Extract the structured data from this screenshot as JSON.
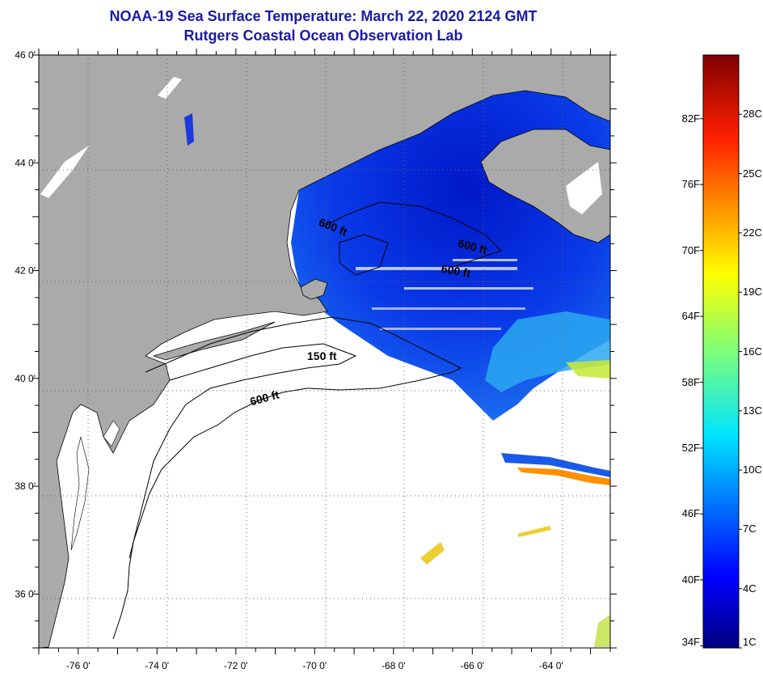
{
  "title": "NOAA-19 Sea Surface Temperature:  March 22, 2020 2124 GMT",
  "subtitle": "Rutgers Coastal Ocean Observation Lab",
  "map": {
    "lat_labels": [
      "46 0'",
      "44 0'",
      "42 0'",
      "40 0'",
      "38 0'",
      "36 0'"
    ],
    "lat_values": [
      46,
      44,
      42,
      40,
      38,
      36
    ],
    "lon_labels": [
      "-76 0'",
      "-74 0'",
      "-72 0'",
      "-70 0'",
      "-68 0'",
      "-66 0'",
      "-64 0'"
    ],
    "lon_values": [
      -76,
      -74,
      -72,
      -70,
      -68,
      -66,
      -64
    ],
    "lat_range": [
      35,
      46
    ],
    "lon_range": [
      -77,
      -62.5
    ],
    "grid": true,
    "contours": [
      {
        "label": "600 ft"
      },
      {
        "label": "600 ft"
      },
      {
        "label": "600 ft"
      },
      {
        "label": "150 ft"
      },
      {
        "label": "600 ft"
      }
    ],
    "colors": {
      "land": "#aaaaaa",
      "no_data": "#ffffff",
      "cold_water": "#0a28d8"
    }
  },
  "colorbar": {
    "fahrenheit_labels": [
      "82F",
      "76F",
      "70F",
      "64F",
      "58F",
      "52F",
      "46F",
      "40F",
      "34F"
    ],
    "celsius_labels": [
      "28C",
      "25C",
      "22C",
      "19C",
      "16C",
      "13C",
      "10C",
      "7C",
      "4C",
      "1C"
    ],
    "range_c": [
      1,
      31
    ],
    "colormap": "jet"
  }
}
